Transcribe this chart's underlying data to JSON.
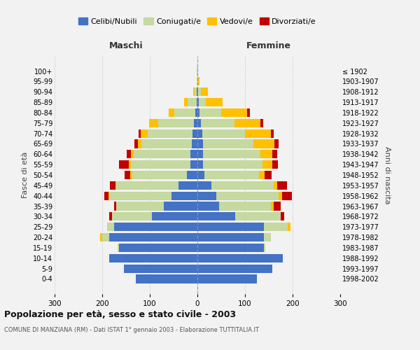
{
  "age_groups": [
    "0-4",
    "5-9",
    "10-14",
    "15-19",
    "20-24",
    "25-29",
    "30-34",
    "35-39",
    "40-44",
    "45-49",
    "50-54",
    "55-59",
    "60-64",
    "65-69",
    "70-74",
    "75-79",
    "80-84",
    "85-89",
    "90-94",
    "95-99",
    "100+"
  ],
  "birth_years": [
    "1998-2002",
    "1993-1997",
    "1988-1992",
    "1983-1987",
    "1978-1982",
    "1973-1977",
    "1968-1972",
    "1963-1967",
    "1958-1962",
    "1953-1957",
    "1948-1952",
    "1943-1947",
    "1938-1942",
    "1933-1937",
    "1928-1932",
    "1923-1927",
    "1918-1922",
    "1913-1917",
    "1908-1912",
    "1903-1907",
    "≤ 1902"
  ],
  "males": {
    "celibi": [
      130,
      155,
      185,
      165,
      185,
      175,
      95,
      70,
      55,
      40,
      22,
      15,
      14,
      12,
      10,
      8,
      4,
      2,
      1,
      0,
      0
    ],
    "coniugati": [
      0,
      0,
      0,
      2,
      15,
      15,
      85,
      100,
      130,
      130,
      115,
      125,
      120,
      105,
      95,
      75,
      45,
      18,
      5,
      2,
      1
    ],
    "vedovi": [
      0,
      0,
      0,
      0,
      5,
      0,
      0,
      0,
      2,
      2,
      4,
      4,
      5,
      8,
      14,
      18,
      12,
      8,
      3,
      0,
      0
    ],
    "divorziati": [
      0,
      0,
      0,
      0,
      0,
      0,
      5,
      5,
      8,
      12,
      12,
      20,
      10,
      8,
      5,
      0,
      0,
      0,
      0,
      0,
      0
    ]
  },
  "females": {
    "nubili": [
      125,
      158,
      180,
      140,
      140,
      140,
      80,
      45,
      40,
      30,
      14,
      12,
      12,
      12,
      10,
      8,
      5,
      3,
      2,
      0,
      0
    ],
    "coniugate": [
      0,
      0,
      0,
      2,
      15,
      50,
      95,
      110,
      130,
      130,
      115,
      125,
      120,
      105,
      90,
      70,
      45,
      15,
      5,
      2,
      1
    ],
    "vedove": [
      0,
      0,
      0,
      0,
      0,
      5,
      0,
      5,
      8,
      8,
      12,
      20,
      25,
      45,
      55,
      55,
      55,
      35,
      15,
      3,
      1
    ],
    "divorziate": [
      0,
      0,
      0,
      0,
      0,
      0,
      8,
      15,
      20,
      20,
      15,
      12,
      10,
      8,
      5,
      5,
      5,
      0,
      0,
      0,
      0
    ]
  },
  "color_celibi": "#4472c4",
  "color_coniugati": "#c5d9a0",
  "color_vedovi": "#ffc000",
  "color_divorziati": "#c00000",
  "bg_color": "#f2f2f2",
  "grid_color": "#cccccc",
  "title": "Popolazione per età, sesso e stato civile - 2003",
  "subtitle": "COMUNE DI MANZIANA (RM) - Dati ISTAT 1° gennaio 2003 - Elaborazione TUTTITALIA.IT",
  "ylabel_left": "Fasce di età",
  "ylabel_right": "Anni di nascita",
  "xlabel_left": "Maschi",
  "xlabel_right": "Femmine",
  "xlim": 300,
  "legend_labels": [
    "Celibi/Nubili",
    "Coniugati/e",
    "Vedovi/e",
    "Divorziati/e"
  ]
}
